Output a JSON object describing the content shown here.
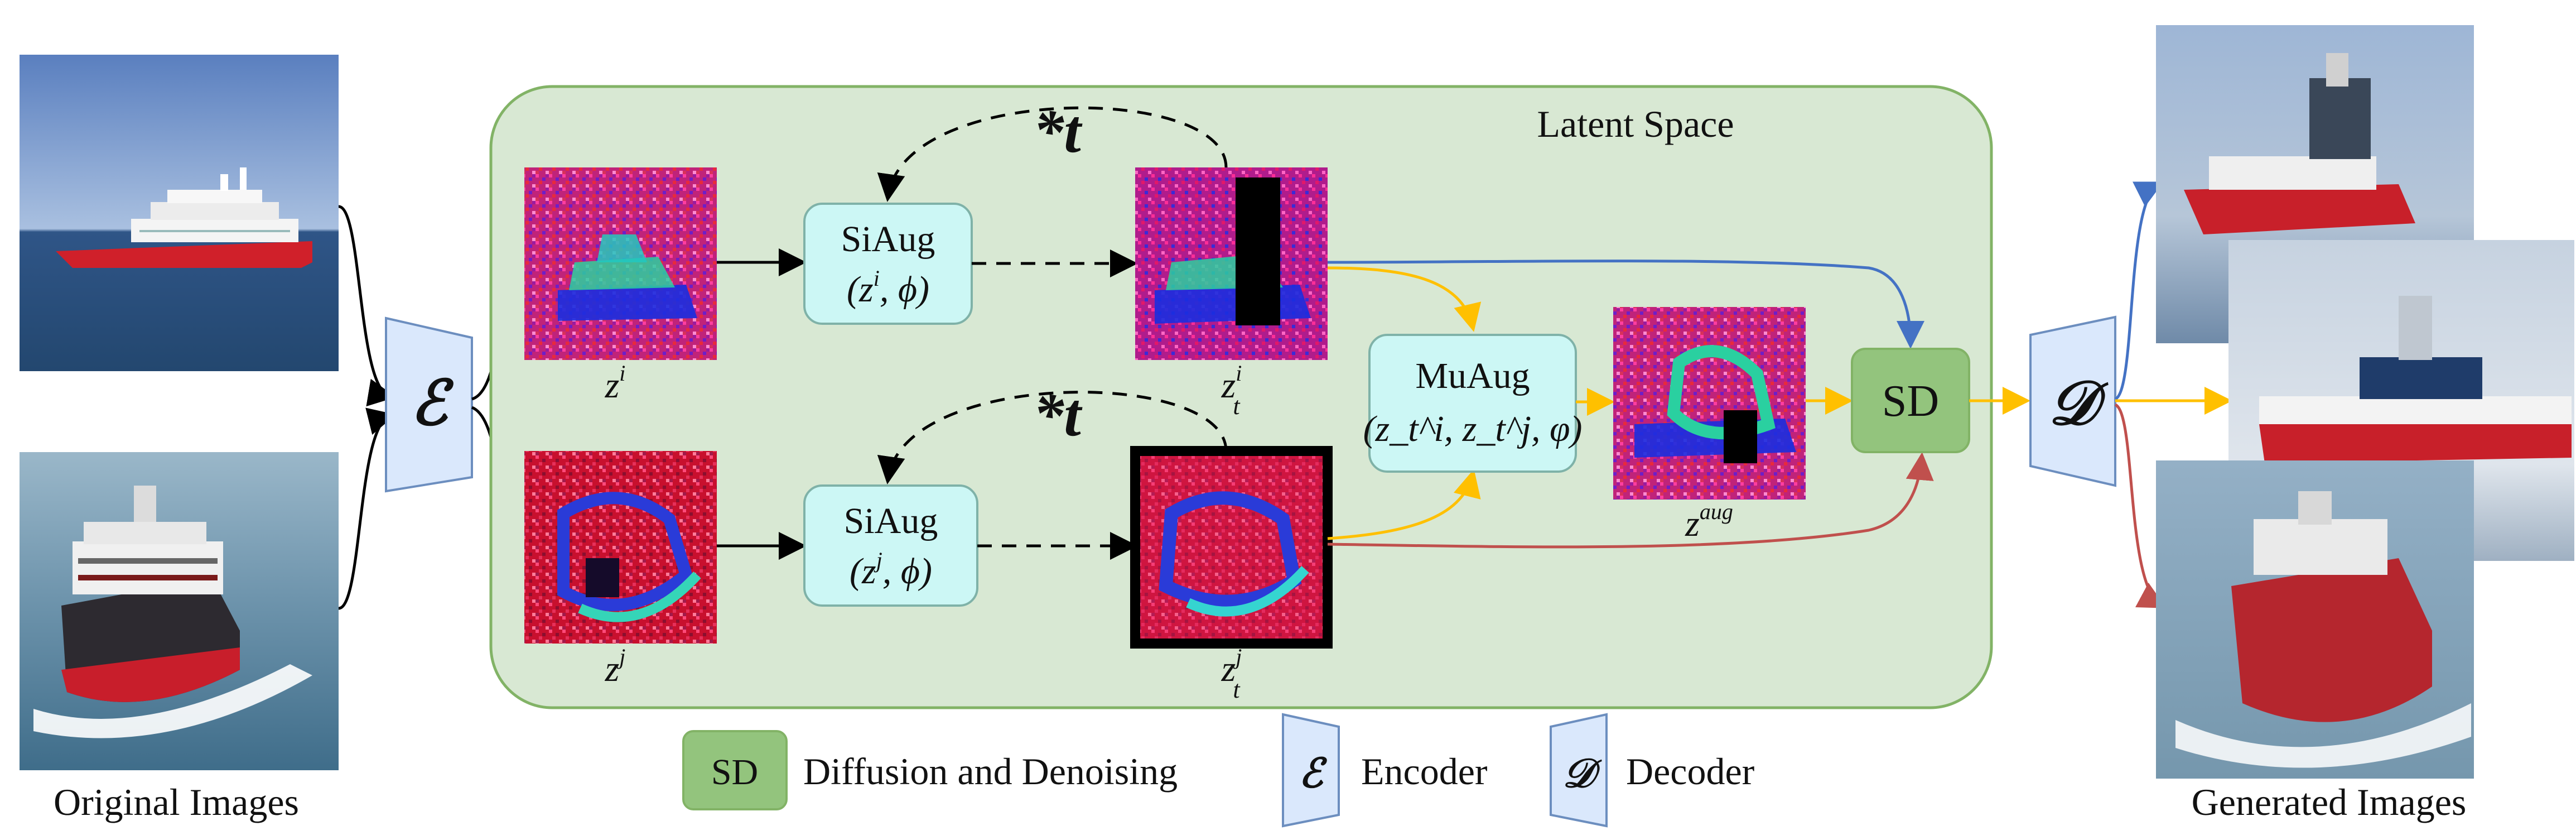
{
  "labels": {
    "original_images": "Original Images",
    "generated_images": "Generated Images",
    "latent_space": "Latent Space",
    "encoder_symbol": "ℰ",
    "decoder_symbol": "𝒟",
    "loop_top": "*t",
    "loop_bottom": "*t"
  },
  "nodes": {
    "siaug_top": {
      "name": "SiAug",
      "args_open": "(z",
      "args_sup": "i",
      "args_rest": ", ϕ)"
    },
    "siaug_bottom": {
      "name": "SiAug",
      "args_open": "(z",
      "args_sup": "j",
      "args_rest": ", ϕ)"
    },
    "muaug": {
      "name": "MuAug",
      "args": "(z_t^i, z_t^j, φ)"
    },
    "sd": {
      "name": "SD"
    }
  },
  "latents": {
    "z_i": {
      "base": "z",
      "sup": "i"
    },
    "z_j": {
      "base": "z",
      "sup": "j"
    },
    "z_t_i": {
      "base": "z",
      "sup": "i",
      "sub": "t"
    },
    "z_t_j": {
      "base": "z",
      "sup": "j",
      "sub": "t"
    },
    "z_aug": {
      "base": "z",
      "sup": "aug"
    }
  },
  "legend": {
    "sd_key": "SD",
    "sd_text": "Diffusion and Denoising",
    "encoder_symbol": "ℰ",
    "encoder_text": "Encoder",
    "decoder_symbol": "𝒟",
    "decoder_text": "Decoder"
  },
  "colors": {
    "latent_bg": "#d8e8d3",
    "latent_border": "#82b366",
    "aug_box_fill": "#ccf7f5",
    "aug_box_border": "#7fb2a8",
    "sd_fill": "#93c47d",
    "enc_dec_fill": "#dae8fc",
    "enc_dec_border": "#6c8ebf",
    "arrow_blue": "#4472c4",
    "arrow_yellow": "#ffc000",
    "arrow_red": "#c0504d",
    "arrow_black": "#000000"
  }
}
